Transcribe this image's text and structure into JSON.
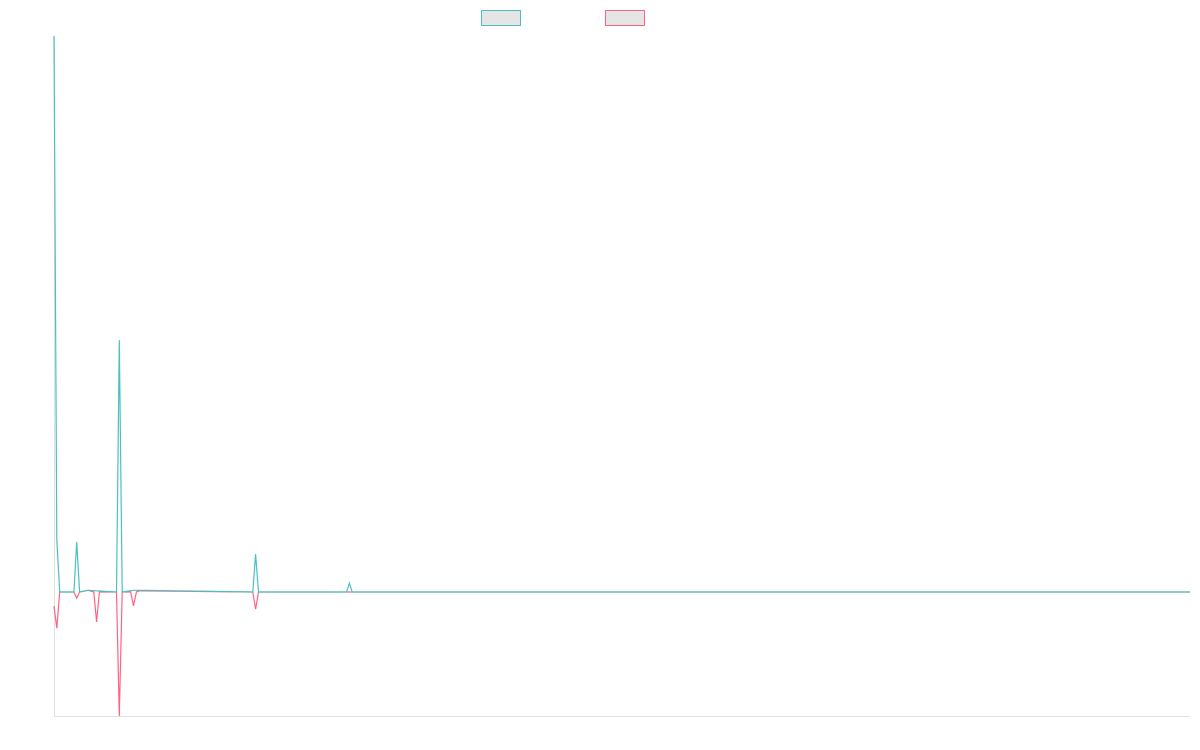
{
  "chart_data": {
    "type": "line",
    "title": "",
    "xlabel": "",
    "ylabel": "",
    "xlim": [
      0,
      400
    ],
    "ylim": [
      -22.3,
      100
    ],
    "grid": false,
    "legend_position": "top",
    "series": [
      {
        "name": "",
        "color": "#4bc0c0",
        "points": [
          [
            0,
            100
          ],
          [
            1,
            9.4
          ],
          [
            2,
            0
          ],
          [
            7,
            0
          ],
          [
            8,
            9
          ],
          [
            9,
            0
          ],
          [
            12,
            0.3
          ],
          [
            22,
            0
          ],
          [
            23,
            45.3
          ],
          [
            24,
            0
          ],
          [
            28,
            0.3
          ],
          [
            32,
            0.3
          ],
          [
            70,
            0
          ],
          [
            71,
            6.8
          ],
          [
            72,
            0
          ],
          [
            103,
            0
          ],
          [
            104,
            1.6
          ],
          [
            105,
            0
          ]
        ]
      },
      {
        "name": "",
        "color": "#ff6384",
        "points": [
          [
            0,
            -2.5
          ],
          [
            1,
            -6.5
          ],
          [
            2,
            0
          ],
          [
            7,
            0
          ],
          [
            8,
            -1.1
          ],
          [
            9,
            0
          ],
          [
            12,
            0.3
          ],
          [
            14,
            0
          ],
          [
            15,
            -5.4
          ],
          [
            16,
            0
          ],
          [
            22,
            0
          ],
          [
            23,
            -22.3
          ],
          [
            24,
            0
          ],
          [
            27,
            0
          ],
          [
            28,
            -2.5
          ],
          [
            29,
            0
          ],
          [
            30,
            0.2
          ],
          [
            32,
            0.2
          ],
          [
            70,
            0
          ],
          [
            71,
            -3.1
          ],
          [
            72,
            0
          ]
        ]
      }
    ]
  }
}
